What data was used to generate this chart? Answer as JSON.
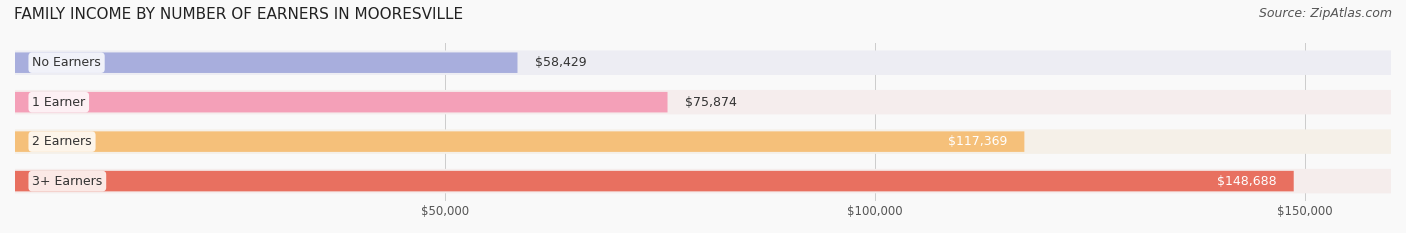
{
  "title": "FAMILY INCOME BY NUMBER OF EARNERS IN MOORESVILLE",
  "source": "Source: ZipAtlas.com",
  "categories": [
    "No Earners",
    "1 Earner",
    "2 Earners",
    "3+ Earners"
  ],
  "values": [
    58429,
    75874,
    117369,
    148688
  ],
  "bar_colors": [
    "#a8aedd",
    "#f4a0b8",
    "#f5c07a",
    "#e87060"
  ],
  "bg_colors": [
    "#ededf3",
    "#f5eded",
    "#f5f0e8",
    "#f5edec"
  ],
  "label_colors": [
    "#555555",
    "#555555",
    "#ffffff",
    "#ffffff"
  ],
  "xlim": [
    0,
    160000
  ],
  "xticks": [
    50000,
    100000,
    150000
  ],
  "xtick_labels": [
    "$50,000",
    "$100,000",
    "$150,000"
  ],
  "title_fontsize": 11,
  "source_fontsize": 9,
  "bar_label_fontsize": 9,
  "category_fontsize": 9
}
